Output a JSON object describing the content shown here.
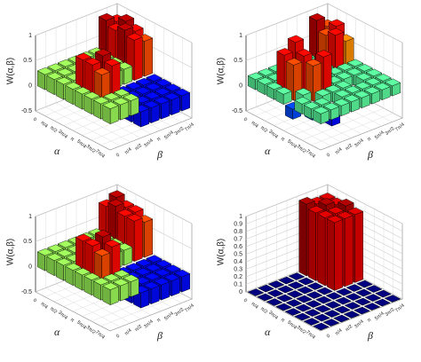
{
  "chart_data": [
    {
      "type": "bar3d",
      "colormap": "jet",
      "xlabel": "α",
      "ylabel": "β",
      "zlabel": "W(α,β)",
      "x_categories": [
        "0",
        "π/4",
        "π/2",
        "3π/4",
        "π",
        "5π/4",
        "3π/2",
        "7π/4"
      ],
      "y_categories": [
        "0",
        "π/4",
        "π/2",
        "3π/4",
        "π",
        "5π/4",
        "3π/2",
        "7π/4"
      ],
      "zlim": [
        -0.5,
        1
      ],
      "zticks": [
        -0.5,
        0,
        0.5,
        1
      ],
      "values": [
        [
          0.3,
          0.3,
          0.3,
          0.3,
          0.3,
          0.3,
          0.9,
          0.8
        ],
        [
          0.3,
          0.3,
          0.3,
          0.3,
          0.3,
          0.3,
          0.8,
          0.9
        ],
        [
          0.3,
          0.3,
          0.3,
          0.3,
          0.3,
          0.3,
          0.9,
          0.8
        ],
        [
          0.3,
          0.8,
          0.3,
          0.3,
          0.3,
          0.3,
          0.8,
          0.7
        ],
        [
          0.3,
          0.8,
          0.9,
          -0.3,
          -0.3,
          -0.3,
          -0.3,
          -0.3
        ],
        [
          0.3,
          0.7,
          0.8,
          -0.3,
          -0.3,
          -0.3,
          -0.3,
          -0.3
        ],
        [
          0.3,
          0.3,
          0.3,
          -0.3,
          -0.3,
          -0.3,
          -0.3,
          -0.3
        ],
        [
          0.3,
          0.3,
          0.3,
          -0.3,
          -0.3,
          -0.3,
          -0.3,
          -0.3
        ]
      ]
    },
    {
      "type": "bar3d",
      "colormap": "jet",
      "xlabel": "α",
      "ylabel": "β",
      "zlabel": "W(α,β)",
      "x_categories": [
        "0",
        "π/4",
        "π/2",
        "3π/4",
        "π",
        "5π/4",
        "3π/2",
        "7π/4"
      ],
      "y_categories": [
        "0",
        "π/4",
        "π/2",
        "3π/4",
        "π",
        "5π/4",
        "3π/2",
        "7π/4"
      ],
      "zlim": [
        -0.5,
        1
      ],
      "zticks": [
        -0.5,
        0,
        0.5,
        1
      ],
      "values": [
        [
          0.2,
          0.2,
          0.2,
          0.2,
          -0.2,
          0.2,
          0.9,
          0.7
        ],
        [
          0.2,
          0.2,
          -0.2,
          0.8,
          0.2,
          -0.2,
          0.7,
          0.8
        ],
        [
          0.2,
          0.8,
          0.2,
          -0.2,
          0.2,
          0.2,
          0.8,
          0.6
        ],
        [
          0.2,
          0.7,
          0.8,
          0.2,
          -0.2,
          0.2,
          0.2,
          0.2
        ],
        [
          -0.2,
          0.2,
          0.7,
          0.8,
          0.2,
          0.2,
          0.2,
          0.2
        ],
        [
          0.2,
          -0.2,
          0.2,
          0.2,
          0.2,
          -0.2,
          0.2,
          0.2
        ],
        [
          0.2,
          0.2,
          -0.3,
          0.2,
          0.2,
          0.2,
          0.2,
          0.2
        ],
        [
          0.2,
          0.2,
          0.2,
          0.2,
          0.2,
          0.2,
          0.2,
          0.2
        ]
      ]
    },
    {
      "type": "bar3d",
      "colormap": "jet",
      "xlabel": "α",
      "ylabel": "β",
      "zlabel": "W(α,β)",
      "x_categories": [
        "0",
        "π/4",
        "π/2",
        "3π/4",
        "π",
        "5π/4",
        "3π/2",
        "7π/4"
      ],
      "y_categories": [
        "0",
        "π/4",
        "π/2",
        "3π/4",
        "π",
        "5π/4",
        "3π/2",
        "7π/4"
      ],
      "zlim": [
        -0.5,
        1
      ],
      "zticks": [
        -0.5,
        0,
        0.5,
        1
      ],
      "values": [
        [
          0.3,
          0.3,
          0.3,
          0.3,
          0.3,
          0.3,
          0.8,
          0.9
        ],
        [
          0.3,
          0.3,
          0.3,
          0.3,
          0.3,
          0.3,
          0.9,
          0.8
        ],
        [
          0.3,
          0.3,
          0.3,
          0.3,
          0.3,
          0.3,
          0.8,
          0.8
        ],
        [
          0.3,
          0.8,
          0.3,
          0.3,
          0.3,
          0.3,
          0.8,
          0.7
        ],
        [
          0.3,
          0.8,
          0.9,
          -0.3,
          -0.3,
          -0.3,
          -0.3,
          -0.3
        ],
        [
          0.3,
          0.7,
          0.8,
          -0.3,
          -0.3,
          -0.3,
          -0.3,
          -0.3
        ],
        [
          0.3,
          0.3,
          0.3,
          -0.3,
          -0.3,
          -0.3,
          -0.3,
          -0.3
        ],
        [
          0.3,
          0.3,
          0.3,
          -0.3,
          -0.3,
          -0.3,
          -0.3,
          -0.3
        ]
      ]
    },
    {
      "type": "bar3d",
      "colormap": "jet",
      "xlabel": "α",
      "ylabel": "β",
      "zlabel": "W(α,β)",
      "x_categories": [
        "0",
        "π/4",
        "π/2",
        "3π/4",
        "π",
        "5π/4",
        "3π/2",
        "7π/4"
      ],
      "y_categories": [
        "0",
        "π/4",
        "π/2",
        "3π/4",
        "π",
        "5π/4",
        "3π/2",
        "7π/4"
      ],
      "zlim": [
        0,
        1
      ],
      "zticks": [
        0,
        0.1,
        0.2,
        0.3,
        0.4,
        0.5,
        0.6,
        0.7,
        0.8,
        0.9,
        1
      ],
      "values": [
        [
          0,
          0,
          0,
          0,
          0,
          0.95,
          0.9,
          0.9
        ],
        [
          0,
          0,
          0,
          0,
          0,
          0.9,
          0.95,
          0.9
        ],
        [
          0,
          0,
          0,
          0,
          0,
          0.9,
          0.9,
          0.95
        ],
        [
          0,
          0,
          0,
          0,
          0,
          0.9,
          0.9,
          0.9
        ],
        [
          0,
          0,
          0,
          0,
          0,
          0,
          0,
          0
        ],
        [
          0,
          0,
          0,
          0,
          0,
          0,
          0,
          0
        ],
        [
          0,
          0,
          0,
          0,
          0,
          0,
          0,
          0
        ],
        [
          0,
          0,
          0,
          0,
          0,
          0,
          0,
          0
        ]
      ]
    }
  ]
}
